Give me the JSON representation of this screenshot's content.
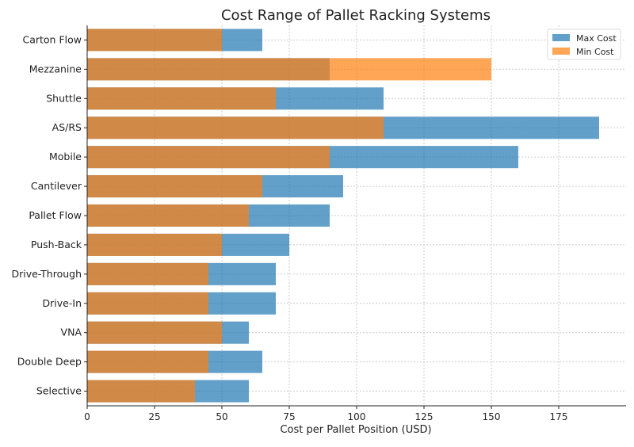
{
  "chart_data": {
    "type": "bar",
    "orientation": "horizontal",
    "title": "Cost Range of Pallet Racking Systems",
    "xlabel": "Cost per Pallet Position (USD)",
    "ylabel": "",
    "xlim": [
      0,
      200
    ],
    "xticks": [
      0,
      25,
      50,
      75,
      100,
      125,
      150,
      175
    ],
    "grid": true,
    "legend_position": "top-right",
    "categories": [
      "Carton Flow",
      "Mezzanine",
      "Shuttle",
      "AS/RS",
      "Mobile",
      "Cantilever",
      "Pallet Flow",
      "Push-Back",
      "Drive-Through",
      "Drive-In",
      "VNA",
      "Double Deep",
      "Selective"
    ],
    "series": [
      {
        "name": "Max Cost",
        "color": "#1f77b4",
        "values": [
          65,
          90,
          110,
          190,
          160,
          95,
          90,
          75,
          70,
          70,
          60,
          65,
          60
        ]
      },
      {
        "name": "Min Cost",
        "color": "#ff7f0e",
        "values": [
          50,
          150,
          70,
          110,
          90,
          65,
          60,
          50,
          45,
          45,
          50,
          45,
          40
        ]
      }
    ]
  }
}
